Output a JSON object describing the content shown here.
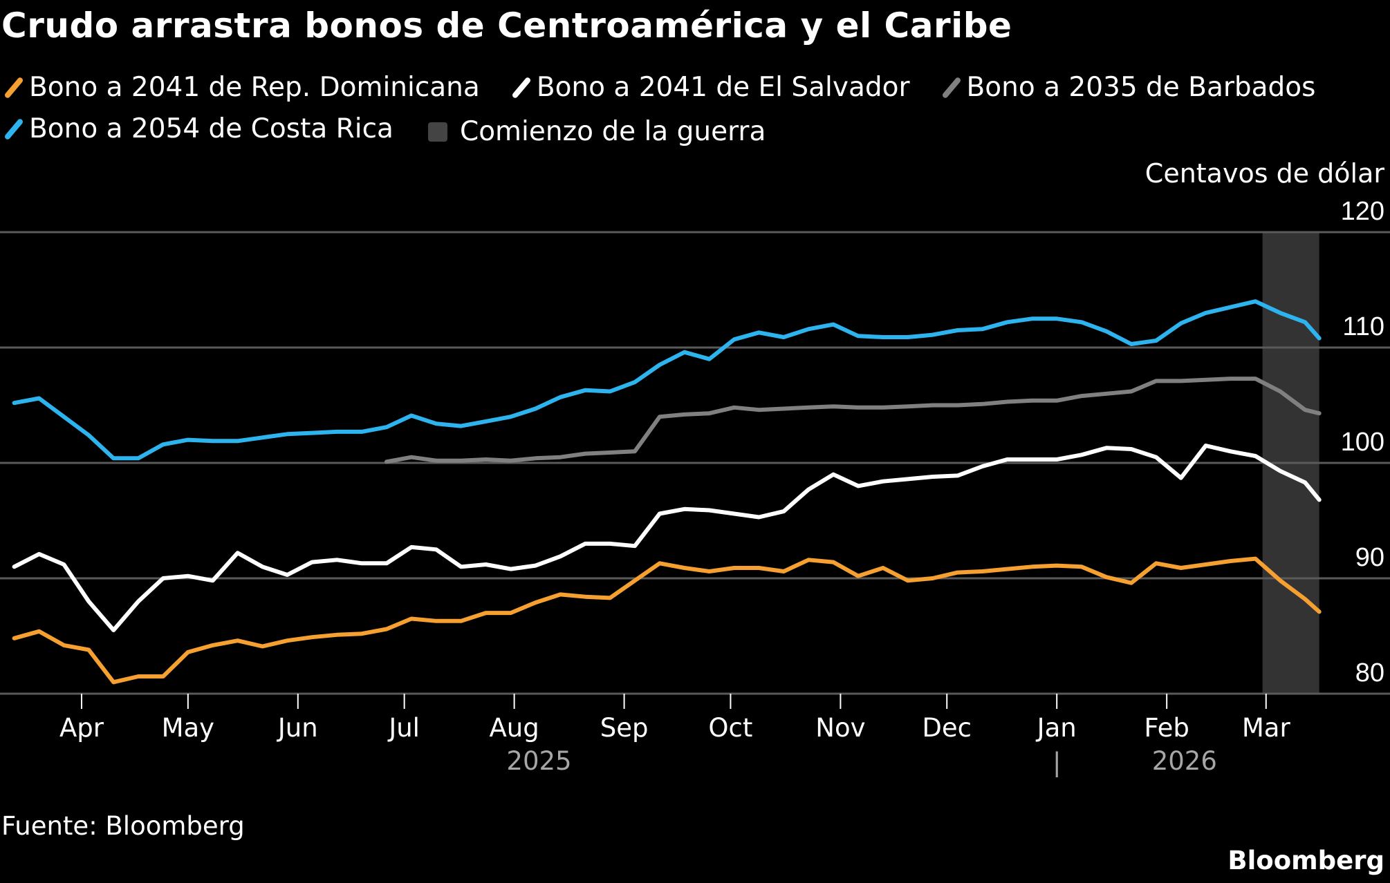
{
  "title": "Crudo arrastra bonos de Centroamérica y el Caribe",
  "source": "Fuente: Bloomberg",
  "brand": "Bloomberg",
  "colors": {
    "dominicana": "#f5a030",
    "salvador": "#ffffff",
    "barbados": "#808080",
    "costarica": "#2db4ee",
    "shade": "#333333",
    "grid": "#5a5a5a"
  },
  "legend": [
    {
      "label": "Bono a 2041 de Rep. Dominicana",
      "color": "#f5a030",
      "icon": "slash-line-icon"
    },
    {
      "label": "Bono a 2041 de El Salvador",
      "color": "#ffffff",
      "icon": "slash-line-icon"
    },
    {
      "label": "Bono a 2035 de Barbados",
      "color": "#808080",
      "icon": "slash-line-icon"
    },
    {
      "label": "Bono a 2054 de Costa Rica",
      "color": "#2db4ee",
      "icon": "slash-line-icon"
    },
    {
      "label": "Comienzo de la guerra",
      "color": "#333333",
      "icon": "square-icon"
    }
  ],
  "chart_data": {
    "type": "line",
    "title": "Crudo arrastra bonos de Centroamérica y el Caribe",
    "ylabel": "Centavos de dólar",
    "ylim": [
      80,
      120
    ],
    "yticks": [
      80,
      90,
      100,
      110,
      120
    ],
    "grid": true,
    "y_axis_side": "right",
    "legend_placement": "top",
    "xticks": [
      {
        "date": "2025-04-01",
        "label": "Apr"
      },
      {
        "date": "2025-05-01",
        "label": "May"
      },
      {
        "date": "2025-06-01",
        "label": "Jun"
      },
      {
        "date": "2025-07-01",
        "label": "Jul"
      },
      {
        "date": "2025-08-01",
        "label": "Aug"
      },
      {
        "date": "2025-09-01",
        "label": "Sep"
      },
      {
        "date": "2025-10-01",
        "label": "Oct"
      },
      {
        "date": "2025-11-01",
        "label": "Nov"
      },
      {
        "date": "2025-12-01",
        "label": "Dec"
      },
      {
        "date": "2026-01-01",
        "label": "Jan"
      },
      {
        "date": "2026-02-01",
        "label": "Feb"
      },
      {
        "date": "2026-03-01",
        "label": "Mar"
      }
    ],
    "year_labels": [
      {
        "label": "2025",
        "date": "2025-08-08"
      },
      {
        "label": "2026",
        "date": "2026-02-06"
      }
    ],
    "year_separator": "|",
    "shaded_region": {
      "label": "Comienzo de la guerra",
      "start": "2026-02-28",
      "end": "2026-03-16"
    },
    "x": [
      "2025-03-13",
      "2025-03-20",
      "2025-03-27",
      "2025-04-03",
      "2025-04-10",
      "2025-04-17",
      "2025-04-24",
      "2025-05-01",
      "2025-05-08",
      "2025-05-15",
      "2025-05-22",
      "2025-05-29",
      "2025-06-05",
      "2025-06-12",
      "2025-06-19",
      "2025-06-26",
      "2025-07-03",
      "2025-07-10",
      "2025-07-17",
      "2025-07-24",
      "2025-07-31",
      "2025-08-07",
      "2025-08-14",
      "2025-08-21",
      "2025-08-28",
      "2025-09-04",
      "2025-09-11",
      "2025-09-18",
      "2025-09-25",
      "2025-10-02",
      "2025-10-09",
      "2025-10-16",
      "2025-10-23",
      "2025-10-30",
      "2025-11-06",
      "2025-11-13",
      "2025-11-20",
      "2025-11-27",
      "2025-12-04",
      "2025-12-11",
      "2025-12-18",
      "2025-12-25",
      "2026-01-01",
      "2026-01-08",
      "2026-01-15",
      "2026-01-22",
      "2026-01-29",
      "2026-02-05",
      "2026-02-12",
      "2026-02-19",
      "2026-02-26",
      "2026-03-05",
      "2026-03-12",
      "2026-03-16"
    ],
    "series": [
      {
        "name": "Bono a 2041 de Rep. Dominicana",
        "color": "#f5a030",
        "values": [
          84.8,
          85.4,
          84.2,
          83.8,
          81.0,
          81.5,
          81.5,
          83.6,
          84.2,
          84.6,
          84.1,
          84.6,
          84.9,
          85.1,
          85.2,
          85.6,
          86.5,
          86.3,
          86.3,
          87.0,
          87.0,
          87.9,
          88.6,
          88.4,
          88.3,
          89.8,
          91.3,
          90.9,
          90.6,
          90.9,
          90.9,
          90.6,
          91.6,
          91.4,
          90.2,
          90.9,
          89.8,
          90.0,
          90.5,
          90.6,
          90.8,
          91.0,
          91.1,
          91.0,
          90.1,
          89.6,
          91.3,
          90.9,
          91.2,
          91.5,
          91.7,
          89.8,
          88.2,
          87.1
        ]
      },
      {
        "name": "Bono a 2041 de El Salvador",
        "color": "#ffffff",
        "values": [
          91.0,
          92.1,
          91.2,
          88.0,
          85.5,
          88.0,
          90.0,
          90.2,
          89.8,
          92.2,
          91.0,
          90.3,
          91.4,
          91.6,
          91.3,
          91.3,
          92.7,
          92.5,
          91.0,
          91.2,
          90.8,
          91.1,
          91.9,
          93.0,
          93.0,
          92.8,
          95.6,
          96.0,
          95.9,
          95.6,
          95.3,
          95.8,
          97.7,
          99.0,
          98.0,
          98.4,
          98.6,
          98.8,
          98.9,
          99.7,
          100.3,
          100.3,
          100.3,
          100.7,
          101.3,
          101.2,
          100.5,
          98.7,
          101.5,
          101.0,
          100.6,
          99.3,
          98.3,
          96.8
        ]
      },
      {
        "name": "Bono a 2035 de Barbados",
        "color": "#808080",
        "values": [
          null,
          null,
          null,
          null,
          null,
          null,
          null,
          null,
          null,
          null,
          null,
          null,
          null,
          null,
          null,
          100.1,
          100.5,
          100.2,
          100.2,
          100.3,
          100.2,
          100.4,
          100.5,
          100.8,
          100.9,
          101.0,
          104.0,
          104.2,
          104.3,
          104.8,
          104.6,
          104.7,
          104.8,
          104.9,
          104.8,
          104.8,
          104.9,
          105.0,
          105.0,
          105.1,
          105.3,
          105.4,
          105.4,
          105.8,
          106.0,
          106.2,
          107.1,
          107.1,
          107.2,
          107.3,
          107.3,
          106.2,
          104.6,
          104.3
        ]
      },
      {
        "name": "Bono a 2054 de Costa Rica",
        "color": "#2db4ee",
        "values": [
          105.2,
          105.6,
          104.0,
          102.4,
          100.4,
          100.4,
          101.6,
          102.0,
          101.9,
          101.9,
          102.2,
          102.5,
          102.6,
          102.7,
          102.7,
          103.1,
          104.1,
          103.4,
          103.2,
          103.6,
          104.0,
          104.7,
          105.7,
          106.3,
          106.2,
          107.0,
          108.5,
          109.6,
          109.0,
          110.7,
          111.3,
          110.9,
          111.6,
          112.0,
          111.0,
          110.9,
          110.9,
          111.1,
          111.5,
          111.6,
          112.2,
          112.5,
          112.5,
          112.2,
          111.4,
          110.3,
          110.6,
          112.1,
          113.0,
          113.5,
          114.0,
          113.0,
          112.2,
          110.8
        ]
      }
    ]
  }
}
